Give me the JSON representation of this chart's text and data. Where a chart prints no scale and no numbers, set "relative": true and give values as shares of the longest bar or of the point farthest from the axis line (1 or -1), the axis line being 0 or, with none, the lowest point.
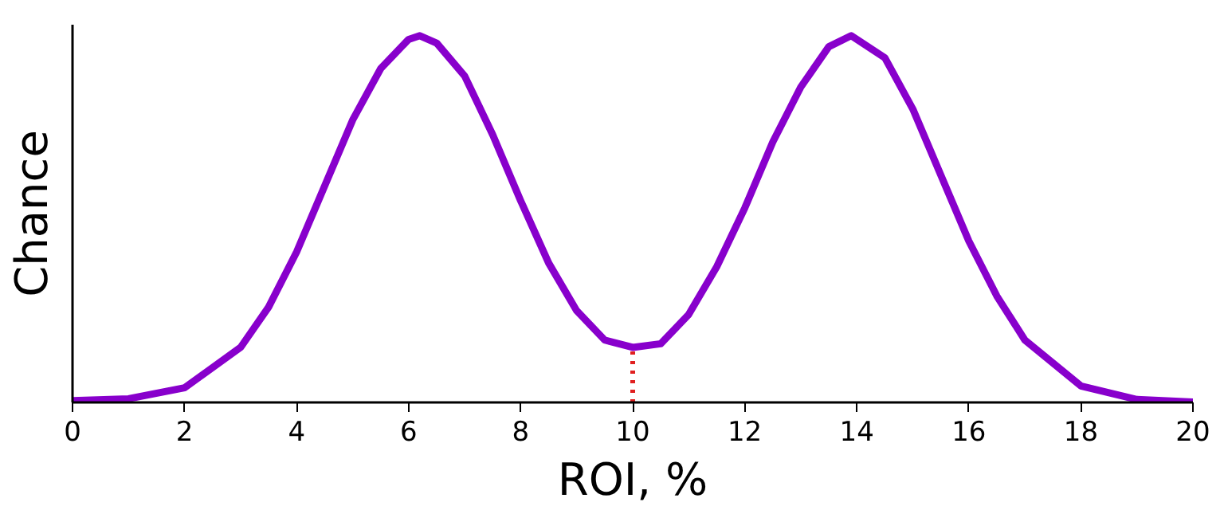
{
  "chart_data": {
    "type": "line",
    "relative": true,
    "xlabel": "ROI, %",
    "ylabel": "Chance",
    "xlim": [
      0,
      20
    ],
    "xticks": [
      0,
      2,
      4,
      6,
      8,
      10,
      12,
      14,
      16,
      18,
      20
    ],
    "grid": false,
    "marker": "none",
    "line_style": "solid",
    "series": [
      {
        "color": "#8800cc",
        "x": [
          0,
          1,
          2,
          3,
          3.5,
          4,
          4.5,
          5,
          5.5,
          6,
          6.2,
          6.5,
          7,
          7.5,
          8,
          8.5,
          9,
          9.5,
          10,
          10.5,
          11,
          11.5,
          12,
          12.5,
          13,
          13.5,
          13.9,
          14.5,
          15,
          15.5,
          16,
          16.5,
          17,
          18,
          19,
          20
        ],
        "values": [
          0.005,
          0.01,
          0.04,
          0.15,
          0.26,
          0.41,
          0.59,
          0.77,
          0.91,
          0.99,
          1,
          0.98,
          0.89,
          0.73,
          0.55,
          0.38,
          0.25,
          0.17,
          0.15,
          0.16,
          0.24,
          0.37,
          0.53,
          0.71,
          0.86,
          0.97,
          1,
          0.94,
          0.8,
          0.62,
          0.44,
          0.29,
          0.17,
          0.045,
          0.008,
          0.001
        ]
      }
    ],
    "ref_lines": [
      {
        "axis": "x",
        "value": 10,
        "color": "#e02020",
        "line_style": "dotted"
      }
    ]
  }
}
